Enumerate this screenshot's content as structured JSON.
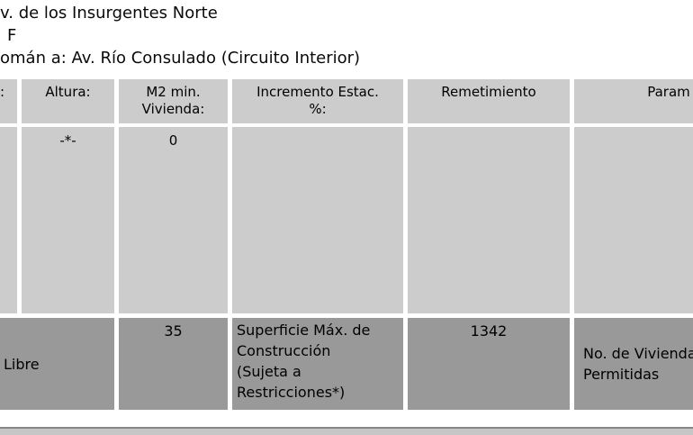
{
  "header_text": {
    "line1": "v. de los Insurgentes Norte",
    "line2": "F",
    "line3": "omán a: Av. Río Consulado (Circuito Interior)"
  },
  "table": {
    "columns": [
      {
        "label": ":"
      },
      {
        "label": "Altura:"
      },
      {
        "label": "M2 min.\nVivienda:"
      },
      {
        "label": "Incremento Estac.\n%:"
      },
      {
        "label": "Remetimiento"
      },
      {
        "label": "Param"
      }
    ],
    "values_row": {
      "altura": "-*-",
      "m2_min_vivienda": "0"
    },
    "summary_row": {
      "altura": "Libre",
      "m2_min_vivienda": "35",
      "incremento_estac": "Superficie Máx. de\nConstrucción\n(Sujeta a\nRestricciones*)",
      "remetimiento": "1342",
      "parametros": "No. de Viviendas\nPermitidas"
    }
  },
  "colors": {
    "cell_light": "#cccccc",
    "cell_dark": "#999999",
    "bar_line": "#878787",
    "bar_fill": "#c6c6c6"
  }
}
